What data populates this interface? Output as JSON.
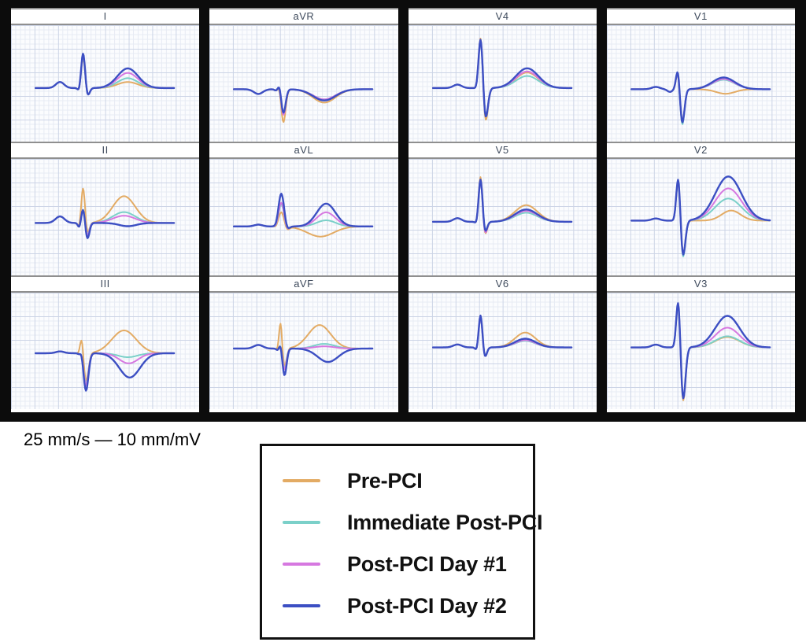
{
  "figure": {
    "scale_label": "25 mm/s — 10 mm/mV"
  },
  "legend": {
    "entries": [
      {
        "label": "Pre-PCI",
        "color": "#e3ab64"
      },
      {
        "label": "Immediate Post-PCI",
        "color": "#7bd0c9"
      },
      {
        "label": "Post-PCI Day #1",
        "color": "#d678e0"
      },
      {
        "label": "Post-PCI Day #2",
        "color": "#3c4fc3"
      }
    ]
  },
  "colors": {
    "frame": "#0c0c0c",
    "paper_bg": "#fbfcfe",
    "grid_minor": "#e7ebf4",
    "grid_major": "#ccd4e6",
    "title_text": "#3e4a5c"
  },
  "chart_data": {
    "type": "line",
    "description": "12-lead ECG median beats overlaid across four time points around PCI",
    "paper_speed": "25 mm/s",
    "gain": "10 mm/mV",
    "series": [
      "Pre-PCI",
      "Immediate Post-PCI",
      "Post-PCI Day #1",
      "Post-PCI Day #2"
    ],
    "series_colors": [
      "#e3ab64",
      "#7bd0c9",
      "#d678e0",
      "#3c4fc3"
    ],
    "columns": [
      [
        "I",
        "II",
        "III"
      ],
      [
        "aVR",
        "aVL",
        "aVF"
      ],
      [
        "V4",
        "V5",
        "V6"
      ],
      [
        "V1",
        "V2",
        "V3"
      ]
    ],
    "x_range": [
      13,
      87
    ],
    "leads": {
      "I": {
        "baseline": 0.54,
        "scale": 48,
        "p": {
          "c": 26,
          "w": 2.2,
          "a": 0.16
        },
        "q": {
          "c": 36.3,
          "w": 0.8,
          "a": -0.1
        },
        "r": {
          "c": 38.3,
          "w": 1.05
        },
        "s": {
          "c": 40.6,
          "w": 1.1
        },
        "t": {
          "c": 62,
          "w": 5.5
        },
        "series": [
          {
            "r": 0.82,
            "s": -0.21,
            "t": 0.16
          },
          {
            "r": 0.86,
            "s": -0.21,
            "t": 0.26
          },
          {
            "r": 0.9,
            "s": -0.21,
            "t": 0.4
          },
          {
            "r": 0.94,
            "s": -0.22,
            "t": 0.52
          }
        ]
      },
      "II": {
        "baseline": 0.55,
        "scale": 46,
        "p": {
          "c": 26,
          "w": 2.4,
          "a": 0.18
        },
        "q": {
          "c": 36.4,
          "w": 0.8,
          "a": -0.15
        },
        "r": {
          "c": 38.3,
          "w": 1.0
        },
        "s": {
          "c": 40.5,
          "w": 1.1
        },
        "t": {
          "c": 60,
          "w": 6
        },
        "series": [
          {
            "r": 1.0,
            "s": -0.3,
            "t": 0.74
          },
          {
            "r": 0.42,
            "s": -0.34,
            "t": 0.3
          },
          {
            "r": 0.41,
            "s": -0.36,
            "t": 0.2
          },
          {
            "r": 0.42,
            "s": -0.45,
            "t": -0.09,
            "tw": 4.5,
            "tc": 62
          }
        ]
      },
      "III": {
        "baseline": 0.52,
        "scale": 46,
        "p": {
          "c": 26,
          "w": 2.2,
          "a": 0.05
        },
        "q": {
          "c": 36.4,
          "w": 0.8,
          "a": -0.04
        },
        "r": {
          "c": 37.6,
          "w": 0.9
        },
        "s": {
          "c": 39.8,
          "w": 1.3
        },
        "t": {
          "c": 62,
          "w": 5.5
        },
        "series": [
          {
            "r": 0.52,
            "s": -0.78,
            "t": 0.63,
            "tc": 60,
            "tw": 6.5
          },
          {
            "r": 0.1,
            "s": -0.85,
            "t": -0.11,
            "tc": 62,
            "tw": 5
          },
          {
            "r": 0.1,
            "s": -0.89,
            "t": -0.28,
            "tc": 62.5,
            "tw": 5
          },
          {
            "r": 0.12,
            "s": -1.04,
            "t": -0.67,
            "tc": 63,
            "tw": 5.5
          }
        ]
      },
      "aVR": {
        "baseline": 0.55,
        "scale": 46,
        "p": {
          "c": 26,
          "w": 2.4,
          "a": -0.13
        },
        "q": {
          "c": 35.8,
          "w": 1.0,
          "a": -0.05
        },
        "r": {
          "c": 37.3,
          "w": 0.9
        },
        "s": {
          "c": 39.3,
          "w": 1.2
        },
        "t": {
          "c": 61,
          "w": 6
        },
        "series": [
          {
            "r": 0.15,
            "s": -0.92,
            "t": -0.37
          },
          {
            "r": 0.15,
            "s": -0.7,
            "t": -0.28
          },
          {
            "r": 0.16,
            "s": -0.72,
            "t": -0.28
          },
          {
            "r": 0.18,
            "s": -0.66,
            "t": -0.31
          }
        ]
      },
      "aVL": {
        "baseline": 0.58,
        "scale": 46,
        "p": {
          "c": 26,
          "w": 2.2,
          "a": 0.05
        },
        "q": {
          "c": 35.6,
          "w": 0.9,
          "a": -0.04
        },
        "r": {
          "c": 38.2,
          "w": 1.5
        },
        "s": {
          "c": 41.2,
          "w": 1.2
        },
        "t": {
          "c": 62,
          "w": 5
        },
        "series": [
          {
            "r": 0.4,
            "s": -0.1,
            "t": -0.28,
            "tc": 59,
            "tw": 7
          },
          {
            "r": 0.62,
            "s": -0.1,
            "t": 0.17
          },
          {
            "r": 0.66,
            "s": -0.1,
            "t": 0.39
          },
          {
            "r": 0.91,
            "s": -0.1,
            "t": 0.63
          }
        ]
      },
      "aVF": {
        "baseline": 0.48,
        "scale": 46,
        "p": {
          "c": 26,
          "w": 2.4,
          "a": 0.1
        },
        "q": {
          "c": 36.5,
          "w": 0.8,
          "a": -0.06
        },
        "r": {
          "c": 37.8,
          "w": 0.8
        },
        "s": {
          "c": 39.9,
          "w": 1.1
        },
        "t": {
          "c": 61,
          "w": 5.5
        },
        "series": [
          {
            "r": 0.78,
            "s": -0.5,
            "t": 0.65,
            "tc": 58.5,
            "tw": 6
          },
          {
            "r": 0.16,
            "s": -0.55,
            "t": 0.13
          },
          {
            "r": 0.15,
            "s": -0.58,
            "t": 0.06
          },
          {
            "r": 0.16,
            "s": -0.74,
            "t": -0.37,
            "tc": 63,
            "tw": 5.5
          }
        ]
      },
      "V1": {
        "baseline": 0.55,
        "scale": 48,
        "p": {
          "c": 26,
          "w": 2.2,
          "a": 0.06
        },
        "q": {
          "c": 33.5,
          "w": 1.4,
          "a": -0.07
        },
        "r": {
          "c": 37.8,
          "w": 1.0
        },
        "s": {
          "c": 40.0,
          "w": 1.2
        },
        "t": {
          "c": 62,
          "w": 6
        },
        "series": [
          {
            "r": 0.52,
            "s": -0.9,
            "t": -0.12,
            "tc": 63,
            "tw": 5
          },
          {
            "r": 0.55,
            "s": -0.97,
            "t": 0.25
          },
          {
            "r": 0.55,
            "s": -0.92,
            "t": 0.27
          },
          {
            "r": 0.58,
            "s": -0.92,
            "t": 0.31
          }
        ]
      },
      "V2": {
        "baseline": 0.53,
        "scale": 46,
        "p": {
          "c": 26,
          "w": 2.2,
          "a": 0.06
        },
        "q": {
          "c": 36.2,
          "w": 0.8,
          "a": -0.04
        },
        "r": {
          "c": 38.0,
          "w": 1.1
        },
        "s": {
          "c": 40.3,
          "w": 1.3
        },
        "t": {
          "c": 64.5,
          "w": 7
        },
        "series": [
          {
            "r": 1.28,
            "s": -1.02,
            "t": 0.28,
            "tc": 66,
            "tw": 5
          },
          {
            "r": 1.3,
            "s": -1.1,
            "t": 0.61
          },
          {
            "r": 1.3,
            "s": -1.05,
            "t": 0.89
          },
          {
            "r": 1.32,
            "s": -1.05,
            "t": 1.22
          }
        ]
      },
      "V3": {
        "baseline": 0.47,
        "scale": 44,
        "p": {
          "c": 26,
          "w": 2.2,
          "a": 0.08
        },
        "q": {
          "c": 36.2,
          "w": 0.8,
          "a": -0.04
        },
        "r": {
          "c": 38.0,
          "w": 1.1
        },
        "s": {
          "c": 40.4,
          "w": 1.3
        },
        "t": {
          "c": 64,
          "w": 6.5
        },
        "series": [
          {
            "r": 1.5,
            "s": -1.64,
            "t": 0.3
          },
          {
            "r": 1.5,
            "s": -1.56,
            "t": 0.32
          },
          {
            "r": 1.52,
            "s": -1.58,
            "t": 0.57
          },
          {
            "r": 1.52,
            "s": -1.58,
            "t": 0.91
          }
        ]
      },
      "V4": {
        "baseline": 0.54,
        "scale": 44,
        "p": {
          "c": 26,
          "w": 2.2,
          "a": 0.1
        },
        "q": {
          "c": 36.3,
          "w": 0.8,
          "a": -0.06
        },
        "r": {
          "c": 38.4,
          "w": 1.15
        },
        "s": {
          "c": 40.8,
          "w": 1.3
        },
        "t": {
          "c": 63,
          "w": 6
        },
        "series": [
          {
            "r": 1.6,
            "s": -1.05,
            "t": 0.45
          },
          {
            "r": 1.5,
            "s": -0.9,
            "t": 0.35
          },
          {
            "r": 1.52,
            "s": -0.92,
            "t": 0.48
          },
          {
            "r": 1.55,
            "s": -0.95,
            "t": 0.57
          }
        ]
      },
      "V5": {
        "baseline": 0.54,
        "scale": 46,
        "p": {
          "c": 26,
          "w": 2.2,
          "a": 0.1
        },
        "q": {
          "c": 36.3,
          "w": 0.8,
          "a": -0.08
        },
        "r": {
          "c": 38.3,
          "w": 1.05
        },
        "s": {
          "c": 40.5,
          "w": 1.15
        },
        "t": {
          "c": 62.5,
          "w": 6
        },
        "series": [
          {
            "r": 1.3,
            "s": -0.4,
            "t": 0.46
          },
          {
            "r": 1.18,
            "s": -0.3,
            "t": 0.25
          },
          {
            "r": 1.2,
            "s": -0.37,
            "t": 0.3
          },
          {
            "r": 1.22,
            "s": -0.32,
            "t": 0.34
          }
        ]
      },
      "V6": {
        "baseline": 0.47,
        "scale": 46,
        "p": {
          "c": 26,
          "w": 2.2,
          "a": 0.08
        },
        "q": {
          "c": 36.3,
          "w": 0.8,
          "a": -0.1
        },
        "r": {
          "c": 38.3,
          "w": 1.0
        },
        "s": {
          "c": 40.4,
          "w": 1.1
        },
        "t": {
          "c": 62,
          "w": 5.5
        },
        "series": [
          {
            "r": 0.9,
            "s": -0.3,
            "t": 0.41
          },
          {
            "r": 0.86,
            "s": -0.28,
            "t": 0.18
          },
          {
            "r": 0.88,
            "s": -0.3,
            "t": 0.2
          },
          {
            "r": 0.93,
            "s": -0.3,
            "t": 0.24
          }
        ]
      }
    }
  }
}
